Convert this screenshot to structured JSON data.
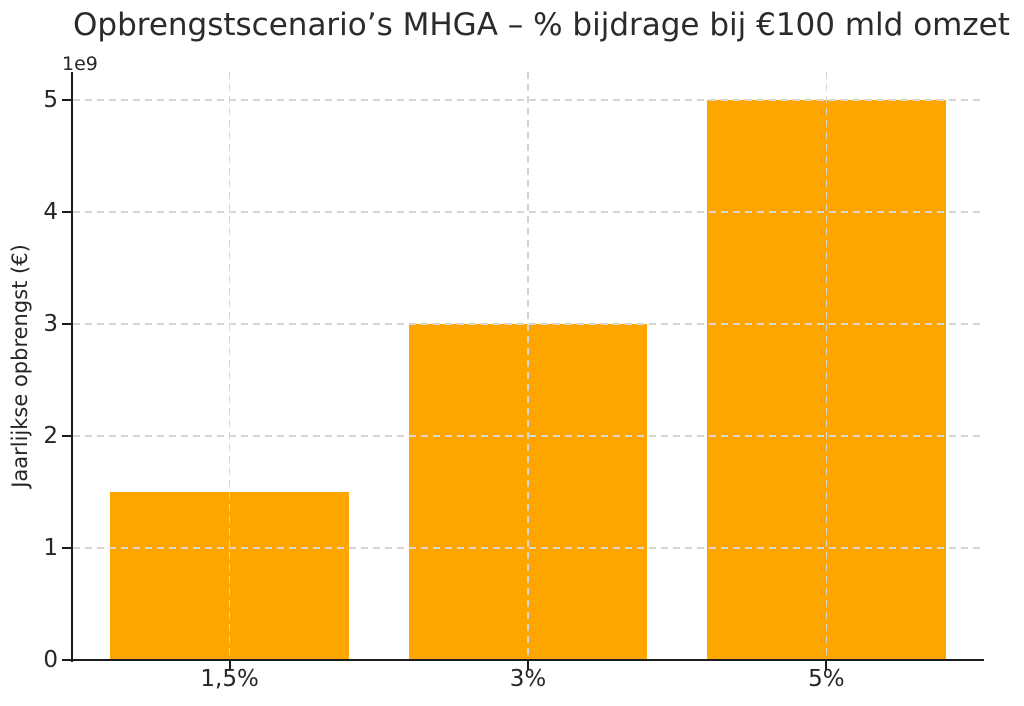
{
  "figure": {
    "background": "#ffffff"
  },
  "chart_data": {
    "type": "bar",
    "title": "Opbrengstscenario’s MHGA – % bijdrage bij €100 mld omzet",
    "xlabel": "",
    "ylabel": "Jaarlijkse opbrengst (€)",
    "offset_label": "1e9",
    "categories": [
      "1,5%",
      "3%",
      "5%"
    ],
    "values": [
      1500000000,
      3000000000,
      5000000000
    ],
    "ylim": [
      0,
      5250000000
    ],
    "ytick_values": [
      0,
      1000000000,
      2000000000,
      3000000000,
      4000000000,
      5000000000
    ],
    "ytick_labels": [
      "0",
      "1",
      "2",
      "3",
      "4",
      "5"
    ],
    "bar_color": "#FFA500",
    "grid": {
      "visible": true,
      "style": "dashed",
      "color": "#d5d5d5",
      "over_bars": true
    },
    "axis_color": "#1c1c1c",
    "text_color": "#262626",
    "legend_position": "none"
  }
}
